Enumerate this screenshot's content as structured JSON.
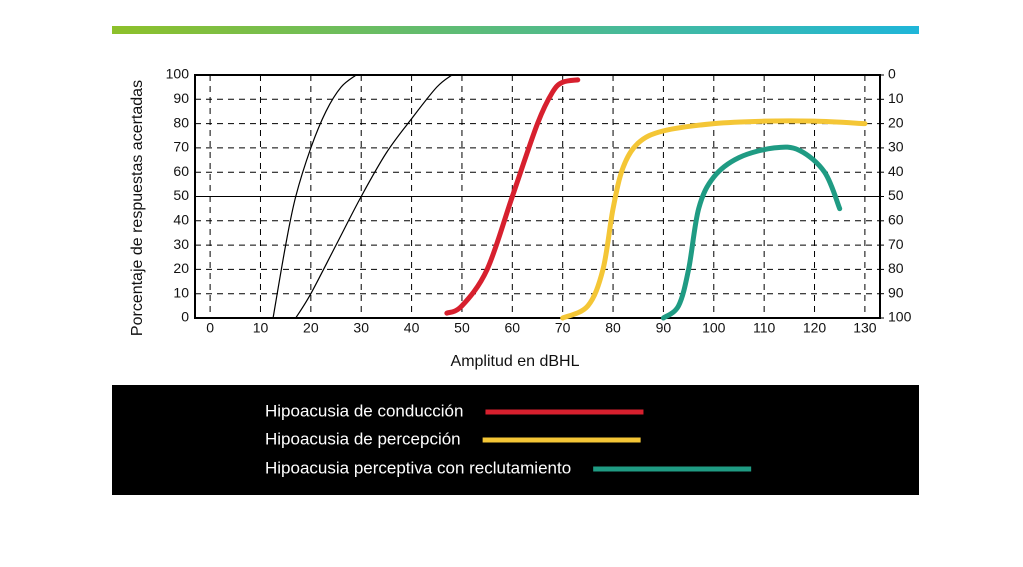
{
  "chart_data": {
    "type": "line",
    "x_label": "Amplitud en dBHL",
    "y_label": "Porcentaje de respuestas acertadas",
    "xlim": [
      -3,
      133
    ],
    "xticks": [
      0,
      10,
      20,
      30,
      40,
      50,
      60,
      70,
      80,
      90,
      100,
      110,
      120,
      130
    ],
    "ylim": [
      0,
      100
    ],
    "yticks": [
      0,
      10,
      20,
      30,
      40,
      50,
      60,
      70,
      80,
      90,
      100
    ],
    "y2lim": [
      100,
      0
    ],
    "y2ticks": [
      0,
      10,
      20,
      30,
      40,
      50,
      60,
      70,
      80,
      90,
      100
    ],
    "grid": true,
    "solid_grid_y": 50,
    "series": [
      {
        "color": "#000000",
        "x": [
          12.5,
          15,
          17,
          20,
          23,
          26,
          29
        ],
        "values": [
          0,
          30,
          50,
          70,
          85,
          95,
          100
        ]
      },
      {
        "color": "#000000",
        "x": [
          17,
          20,
          25,
          30,
          35,
          40,
          45,
          48
        ],
        "values": [
          0,
          10,
          30,
          50,
          68,
          82,
          95,
          100
        ]
      },
      {
        "name": "Hipoacusia de conducción",
        "color": "#d7202e",
        "x": [
          47,
          50,
          55,
          60,
          65,
          68,
          70,
          73
        ],
        "values": [
          2,
          5,
          20,
          50,
          80,
          93,
          97,
          98
        ]
      },
      {
        "name": "Hipoacusia de percepción",
        "color": "#f4c636",
        "x": [
          70,
          75,
          78,
          80,
          82,
          85,
          90,
          100,
          110,
          120,
          130
        ],
        "values": [
          0,
          5,
          20,
          45,
          62,
          72,
          77,
          80,
          81,
          81,
          80
        ]
      },
      {
        "name": "Hipoacusia perceptiva con reclutamiento",
        "color": "#1f9b83",
        "x": [
          90,
          93,
          95,
          97,
          100,
          105,
          112,
          117,
          122,
          125
        ],
        "values": [
          0,
          5,
          20,
          45,
          58,
          66,
          70,
          69,
          60,
          45
        ]
      }
    ]
  }
}
